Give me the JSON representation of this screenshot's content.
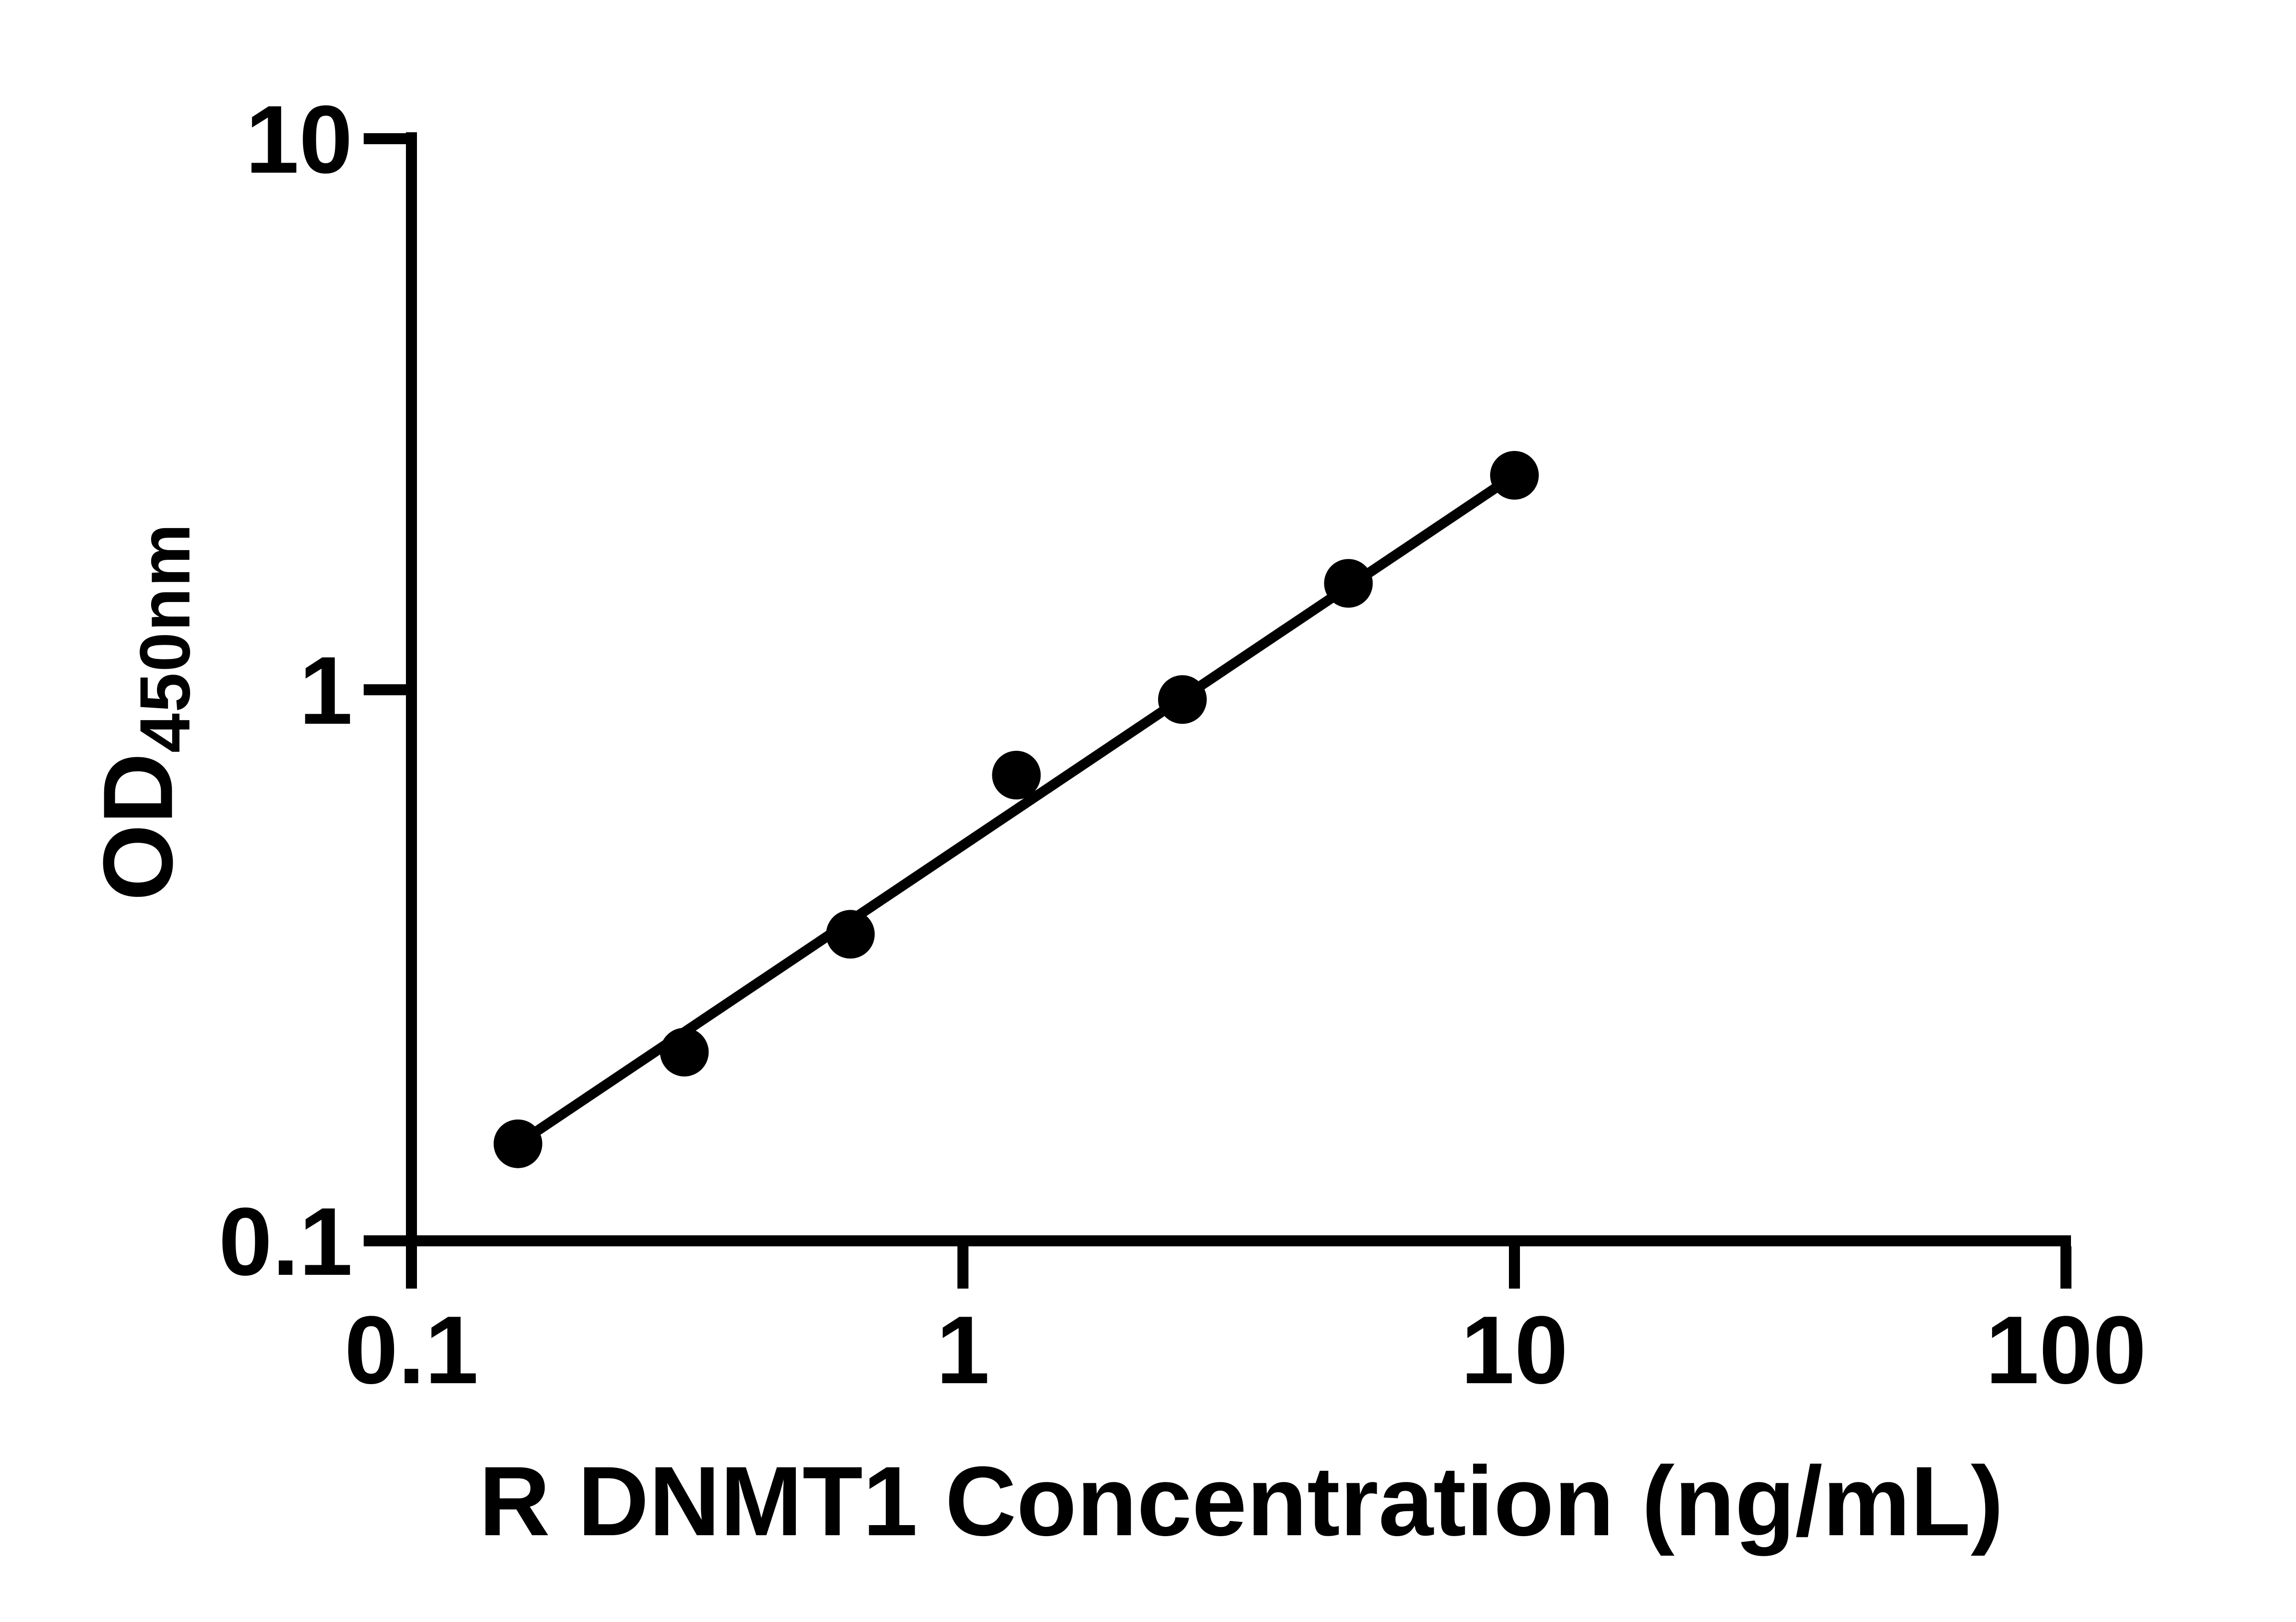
{
  "figure": {
    "background": "#ffffff",
    "ink_color": "#000000"
  },
  "chart_data": {
    "type": "scatter",
    "title": "",
    "xlabel": "R DNMT1 Concentration (ng/mL)",
    "ylabel_main": "OD",
    "ylabel_sub": "450nm",
    "x_scale": "log",
    "y_scale": "log",
    "xlim": [
      0.1,
      100
    ],
    "ylim": [
      0.1,
      10
    ],
    "x_ticks": [
      0.1,
      1,
      10,
      100
    ],
    "y_ticks": [
      0.1,
      1,
      10
    ],
    "grid": false,
    "legend": "none",
    "marker": {
      "shape": "circle",
      "color": "#000000"
    },
    "trend_line": {
      "type": "straight-segment-loglog",
      "color": "#000000",
      "from_index": 0,
      "to_index": 6
    },
    "points": [
      {
        "x": 0.156,
        "y": 0.15
      },
      {
        "x": 0.3125,
        "y": 0.22
      },
      {
        "x": 0.625,
        "y": 0.36
      },
      {
        "x": 1.25,
        "y": 0.7
      },
      {
        "x": 2.5,
        "y": 0.96
      },
      {
        "x": 5,
        "y": 1.56
      },
      {
        "x": 10,
        "y": 2.45
      }
    ]
  }
}
